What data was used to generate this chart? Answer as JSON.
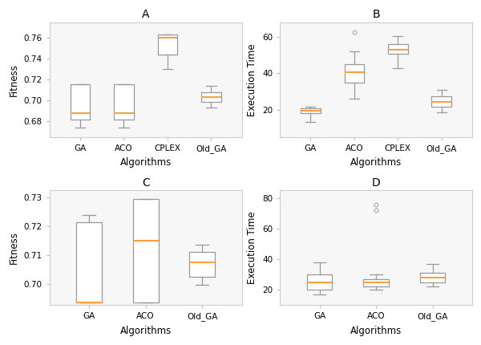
{
  "A": {
    "title": "A",
    "xlabel": "Algorithms",
    "ylabel": "Fitness",
    "categories": [
      "GA",
      "ACO",
      "CPLEX",
      "Old_GA"
    ],
    "boxes": [
      {
        "med": 0.688,
        "q1": 0.682,
        "q3": 0.716,
        "whislo": 0.674,
        "whishi": 0.716,
        "fliers": []
      },
      {
        "med": 0.688,
        "q1": 0.682,
        "q3": 0.716,
        "whislo": 0.674,
        "whishi": 0.716,
        "fliers": []
      },
      {
        "med": 0.76,
        "q1": 0.744,
        "q3": 0.763,
        "whislo": 0.73,
        "whishi": 0.763,
        "fliers": []
      },
      {
        "med": 0.703,
        "q1": 0.699,
        "q3": 0.708,
        "whislo": 0.693,
        "whishi": 0.714,
        "fliers": []
      }
    ],
    "ylim": [
      0.665,
      0.775
    ]
  },
  "B": {
    "title": "B",
    "xlabel": "Algorithms",
    "ylabel": "Execution Time",
    "categories": [
      "GA",
      "ACO",
      "CPLEX",
      "Old_GA"
    ],
    "boxes": [
      {
        "med": 19.5,
        "q1": 18.0,
        "q3": 21.0,
        "whislo": 13.5,
        "whishi": 21.5,
        "fliers": []
      },
      {
        "med": 40.5,
        "q1": 35.0,
        "q3": 45.0,
        "whislo": 26.0,
        "whishi": 52.0,
        "fliers": [
          62.5
        ]
      },
      {
        "med": 53.0,
        "q1": 50.5,
        "q3": 56.0,
        "whislo": 43.0,
        "whishi": 60.5,
        "fliers": []
      },
      {
        "med": 24.5,
        "q1": 21.5,
        "q3": 27.5,
        "whislo": 18.5,
        "whishi": 31.0,
        "fliers": []
      }
    ],
    "ylim": [
      5,
      68
    ]
  },
  "C": {
    "title": "C",
    "xlabel": "Algorithms",
    "ylabel": "Fitness",
    "categories": [
      "GA",
      "ACO",
      "Old_GA"
    ],
    "boxes": [
      {
        "med": 0.6935,
        "q1": 0.6935,
        "q3": 0.7215,
        "whislo": 0.6935,
        "whishi": 0.724,
        "fliers": []
      },
      {
        "med": 0.715,
        "q1": 0.6935,
        "q3": 0.7295,
        "whislo": 0.6935,
        "whishi": 0.7295,
        "fliers": []
      },
      {
        "med": 0.7075,
        "q1": 0.7025,
        "q3": 0.711,
        "whislo": 0.6995,
        "whishi": 0.7135,
        "fliers": []
      }
    ],
    "ylim": [
      0.6925,
      0.7325
    ]
  },
  "D": {
    "title": "D",
    "xlabel": "Algorithms",
    "ylabel": "Execution Time",
    "categories": [
      "GA",
      "ACO",
      "Old_GA"
    ],
    "boxes": [
      {
        "med": 25.0,
        "q1": 20.0,
        "q3": 30.0,
        "whislo": 17.0,
        "whishi": 38.0,
        "fliers": []
      },
      {
        "med": 25.0,
        "q1": 22.0,
        "q3": 27.0,
        "whislo": 20.0,
        "whishi": 30.0,
        "fliers": [
          75.5,
          72.0
        ]
      },
      {
        "med": 28.0,
        "q1": 25.0,
        "q3": 31.0,
        "whislo": 22.0,
        "whishi": 37.0,
        "fliers": []
      }
    ],
    "ylim": [
      10,
      85
    ]
  },
  "median_color": "#FFA040",
  "box_edgecolor": "#999999",
  "whisker_color": "#999999",
  "cap_color": "#999999",
  "flier_color": "#aaaaaa",
  "panel_bg": "#f7f7f7",
  "fig_bg": "#ffffff",
  "title_fontsize": 10,
  "label_fontsize": 8.5,
  "tick_fontsize": 7.5
}
